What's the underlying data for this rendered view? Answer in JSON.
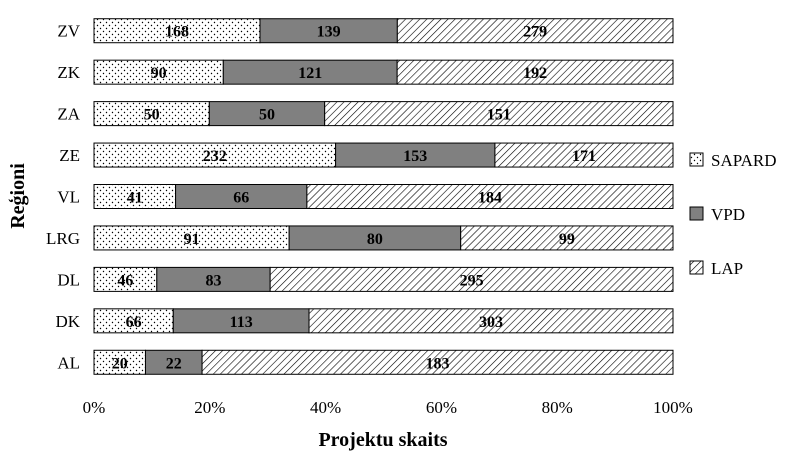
{
  "chart_data": {
    "type": "bar",
    "orientation": "horizontal",
    "stacked": "percent",
    "xlabel": "Projektu skaits",
    "ylabel": "Reģioni",
    "xlim": [
      0,
      100
    ],
    "x_ticks": [
      "0%",
      "20%",
      "40%",
      "60%",
      "80%",
      "100%"
    ],
    "legend_position": "right",
    "categories": [
      "ZV",
      "ZK",
      "ZA",
      "ZE",
      "VL",
      "LRG",
      "DL",
      "DK",
      "AL"
    ],
    "series": [
      {
        "name": "SAPARD",
        "pattern": "dots",
        "color": "#ffffff",
        "values": [
          168,
          90,
          50,
          232,
          41,
          91,
          46,
          66,
          20
        ]
      },
      {
        "name": "VPD",
        "pattern": "solid",
        "color": "#808080",
        "values": [
          139,
          121,
          50,
          153,
          66,
          80,
          83,
          113,
          22
        ]
      },
      {
        "name": "LAP",
        "pattern": "diagonal",
        "color": "#ffffff",
        "values": [
          279,
          192,
          151,
          171,
          184,
          99,
          295,
          303,
          183
        ]
      }
    ]
  }
}
